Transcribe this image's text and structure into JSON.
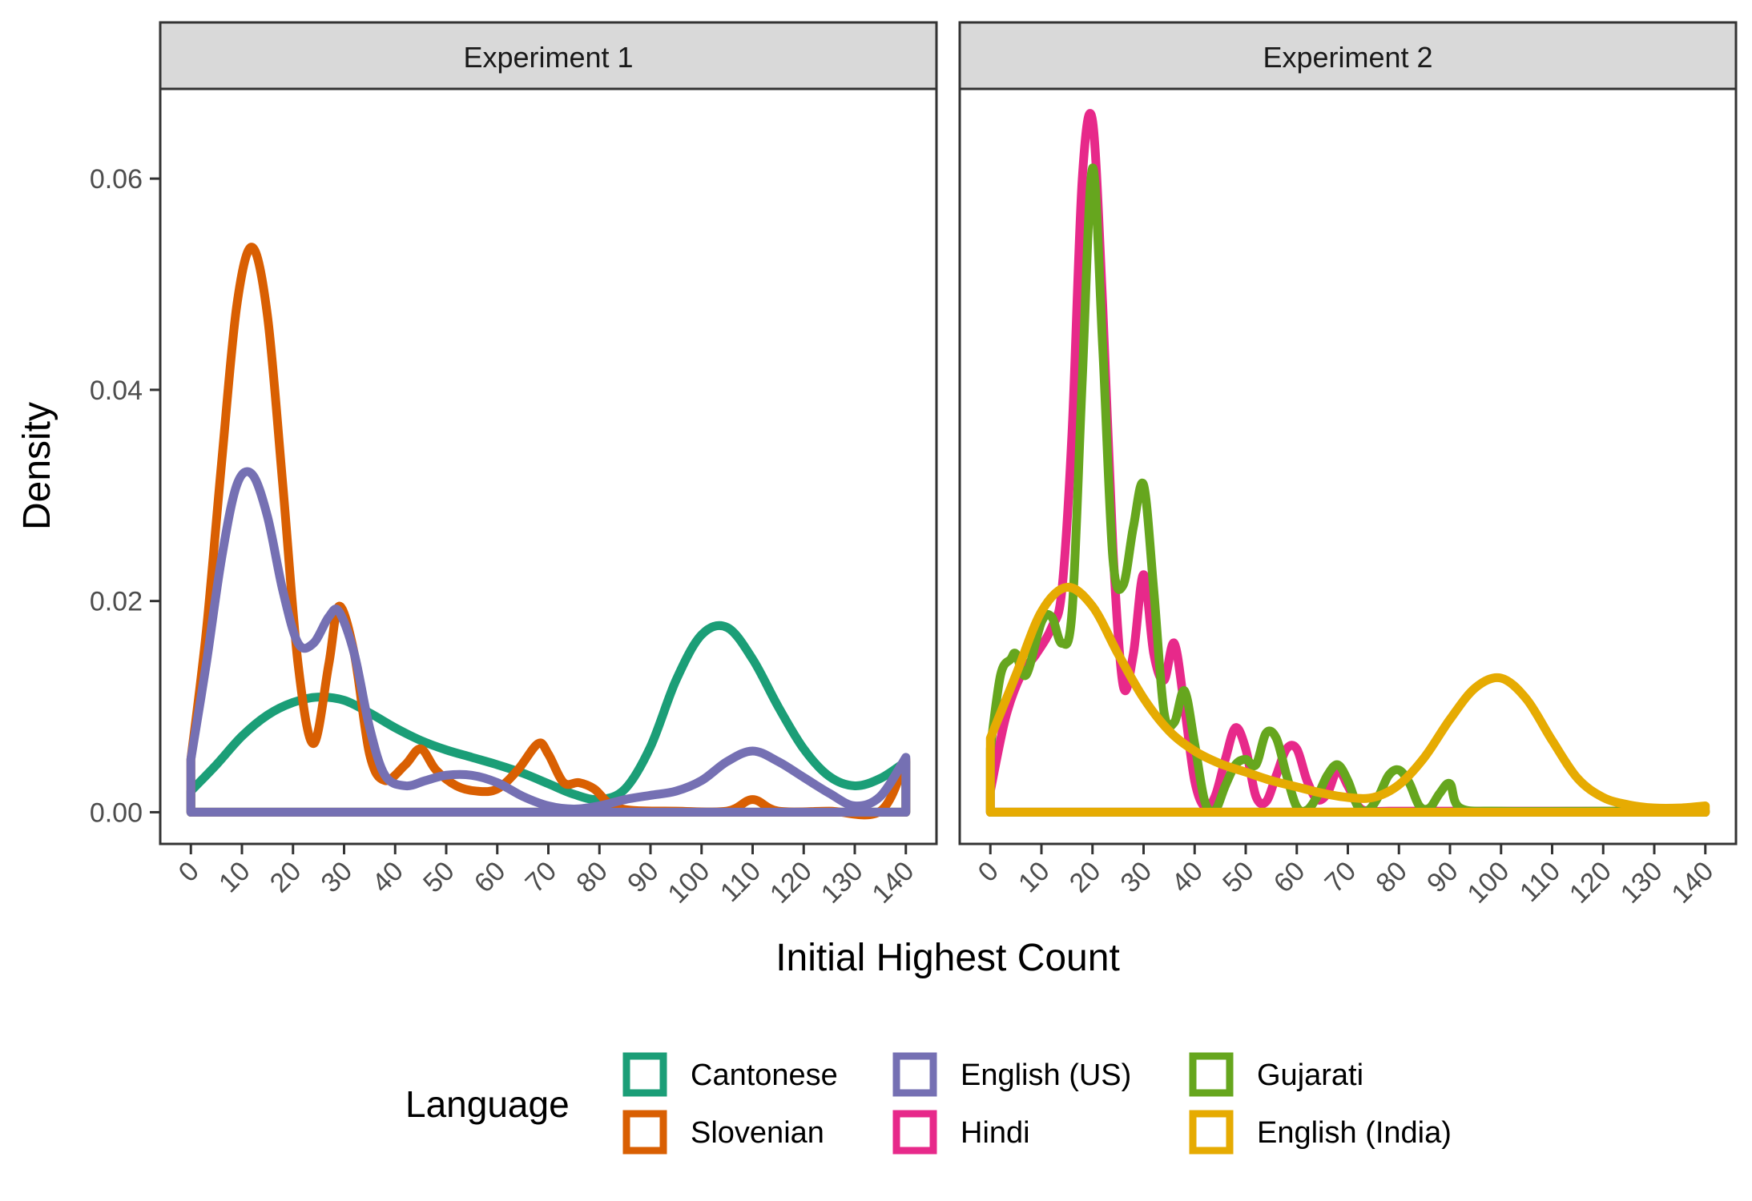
{
  "chart_data": {
    "type": "line",
    "subtype": "density",
    "xlabel": "Initial Highest Count",
    "ylabel": "Density",
    "xlim": [
      -6,
      146
    ],
    "ylim": [
      -0.003,
      0.0685
    ],
    "x_ticks": [
      0,
      10,
      20,
      30,
      40,
      50,
      60,
      70,
      80,
      90,
      100,
      110,
      120,
      130,
      140
    ],
    "x_tick_labels": [
      "0",
      "10",
      "20",
      "30",
      "40",
      "50",
      "60",
      "70",
      "80",
      "90",
      "100",
      "110",
      "120",
      "130",
      "140"
    ],
    "y_ticks": [
      0,
      0.02,
      0.04,
      0.06
    ],
    "y_tick_labels": [
      "0.00",
      "0.02",
      "0.04",
      "0.06"
    ],
    "grid": false,
    "legend_position": "bottom",
    "legend_title": "Language",
    "legend": [
      {
        "name": "Cantonese",
        "color": "#1b9e77"
      },
      {
        "name": "Slovenian",
        "color": "#d95f02"
      },
      {
        "name": "English (US)",
        "color": "#7570b3"
      },
      {
        "name": "Hindi",
        "color": "#e7298a"
      },
      {
        "name": "Gujarati",
        "color": "#66a61e"
      },
      {
        "name": "English (India)",
        "color": "#e6ab02"
      }
    ],
    "panels": [
      {
        "title": "Experiment 1",
        "series": [
          {
            "name": "Cantonese",
            "color": "#1b9e77",
            "x": [
              0,
              5,
              10,
              15,
              20,
              25,
              30,
              35,
              40,
              45,
              50,
              55,
              60,
              65,
              70,
              75,
              80,
              85,
              90,
              95,
              100,
              105,
              110,
              115,
              120,
              125,
              130,
              135,
              140
            ],
            "y": [
              0.002,
              0.0045,
              0.0072,
              0.0092,
              0.0104,
              0.0109,
              0.0106,
              0.0094,
              0.008,
              0.0068,
              0.0059,
              0.0052,
              0.0045,
              0.0037,
              0.0027,
              0.0017,
              0.0012,
              0.0022,
              0.0062,
              0.0125,
              0.0168,
              0.0175,
              0.0145,
              0.01,
              0.006,
              0.0034,
              0.0025,
              0.0032,
              0.0048
            ]
          },
          {
            "name": "Slovenian",
            "color": "#d95f02",
            "x": [
              0,
              3,
              6,
              9,
              12,
              15,
              18,
              21,
              24,
              27,
              29,
              32,
              35,
              38,
              42,
              45,
              48,
              52,
              56,
              60,
              64,
              68,
              70,
              73,
              76,
              79,
              82,
              86,
              95,
              105,
              110,
              115,
              125,
              135,
              140
            ],
            "y": [
              0.005,
              0.017,
              0.033,
              0.048,
              0.0535,
              0.047,
              0.031,
              0.014,
              0.0065,
              0.014,
              0.0195,
              0.015,
              0.0055,
              0.003,
              0.0045,
              0.006,
              0.004,
              0.0025,
              0.002,
              0.0022,
              0.004,
              0.0065,
              0.0055,
              0.0028,
              0.0028,
              0.0022,
              0.0008,
              0.0002,
              0.0001,
              0.0001,
              0.0012,
              0.0001,
              0.0001,
              0.0001,
              0.005
            ]
          },
          {
            "name": "English (US)",
            "color": "#7570b3",
            "x": [
              0,
              3,
              6,
              9,
              12,
              15,
              18,
              21,
              24,
              27,
              29,
              32,
              35,
              38,
              42,
              46,
              50,
              55,
              60,
              65,
              70,
              75,
              80,
              85,
              90,
              95,
              100,
              105,
              110,
              115,
              120,
              125,
              130,
              135,
              140
            ],
            "y": [
              0.005,
              0.014,
              0.024,
              0.031,
              0.032,
              0.028,
              0.021,
              0.016,
              0.016,
              0.0185,
              0.019,
              0.015,
              0.008,
              0.0035,
              0.0025,
              0.003,
              0.0035,
              0.0035,
              0.0028,
              0.0015,
              0.0006,
              0.0003,
              0.0006,
              0.0012,
              0.0016,
              0.002,
              0.003,
              0.0048,
              0.0058,
              0.0048,
              0.0033,
              0.0018,
              0.0006,
              0.0015,
              0.0052
            ]
          }
        ]
      },
      {
        "title": "Experiment 2",
        "series": [
          {
            "name": "Hindi",
            "color": "#e7298a",
            "x": [
              0,
              3,
              6,
              9,
              12,
              14,
              16,
              18,
              20,
              22,
              24,
              26,
              28,
              30,
              32,
              34,
              36,
              38,
              40,
              42,
              44,
              46,
              48,
              50,
              52,
              54,
              56,
              58,
              60,
              62,
              64,
              66,
              68,
              70,
              72,
              74,
              78,
              85,
              95,
              110,
              125,
              140
            ],
            "y": [
              0.002,
              0.009,
              0.013,
              0.015,
              0.0175,
              0.021,
              0.036,
              0.06,
              0.0655,
              0.048,
              0.025,
              0.012,
              0.015,
              0.0225,
              0.015,
              0.0125,
              0.016,
              0.01,
              0.003,
              0.0005,
              0.0015,
              0.005,
              0.008,
              0.006,
              0.0015,
              0.001,
              0.0035,
              0.006,
              0.006,
              0.003,
              0.0012,
              0.0018,
              0.004,
              0.0025,
              0.0006,
              0.0001,
              0.0001,
              0.0001,
              0.0001,
              0.0001,
              0.0001,
              0.0001
            ]
          },
          {
            "name": "Gujarati",
            "color": "#66a61e",
            "x": [
              0,
              2,
              4,
              5,
              7,
              10,
              12,
              14,
              16,
              18,
              20,
              22,
              24,
              26,
              28,
              30,
              32,
              34,
              36,
              38,
              40,
              42,
              44,
              46,
              48,
              50,
              52,
              54,
              56,
              58,
              60,
              62,
              64,
              66,
              68,
              70,
              72,
              74,
              76,
              78,
              80,
              82,
              84,
              86,
              88,
              90,
              92,
              100,
              120,
              140
            ],
            "y": [
              0.006,
              0.013,
              0.0145,
              0.015,
              0.013,
              0.018,
              0.0185,
              0.016,
              0.019,
              0.041,
              0.061,
              0.044,
              0.024,
              0.0215,
              0.027,
              0.031,
              0.021,
              0.0095,
              0.0085,
              0.0115,
              0.0065,
              0.001,
              0.0002,
              0.0025,
              0.0045,
              0.005,
              0.0045,
              0.0075,
              0.007,
              0.0035,
              0.0005,
              0.0002,
              0.0015,
              0.0035,
              0.0045,
              0.003,
              0.0005,
              0.0002,
              0.0015,
              0.0035,
              0.004,
              0.0028,
              0.0006,
              0.0004,
              0.0018,
              0.0027,
              0.0004,
              0.0001,
              0.0001,
              0.0001
            ]
          },
          {
            "name": "English (India)",
            "color": "#e6ab02",
            "x": [
              0,
              5,
              10,
              15,
              20,
              25,
              30,
              35,
              40,
              45,
              50,
              55,
              60,
              65,
              70,
              75,
              80,
              85,
              90,
              95,
              100,
              105,
              110,
              115,
              120,
              125,
              130,
              135,
              140
            ],
            "y": [
              0.007,
              0.013,
              0.019,
              0.0213,
              0.0195,
              0.015,
              0.0108,
              0.0077,
              0.0058,
              0.0046,
              0.0038,
              0.003,
              0.0024,
              0.0018,
              0.0014,
              0.0014,
              0.0026,
              0.0052,
              0.0088,
              0.0118,
              0.0127,
              0.0107,
              0.0068,
              0.0032,
              0.0014,
              0.0007,
              0.0004,
              0.0004,
              0.0006
            ]
          }
        ]
      }
    ]
  }
}
